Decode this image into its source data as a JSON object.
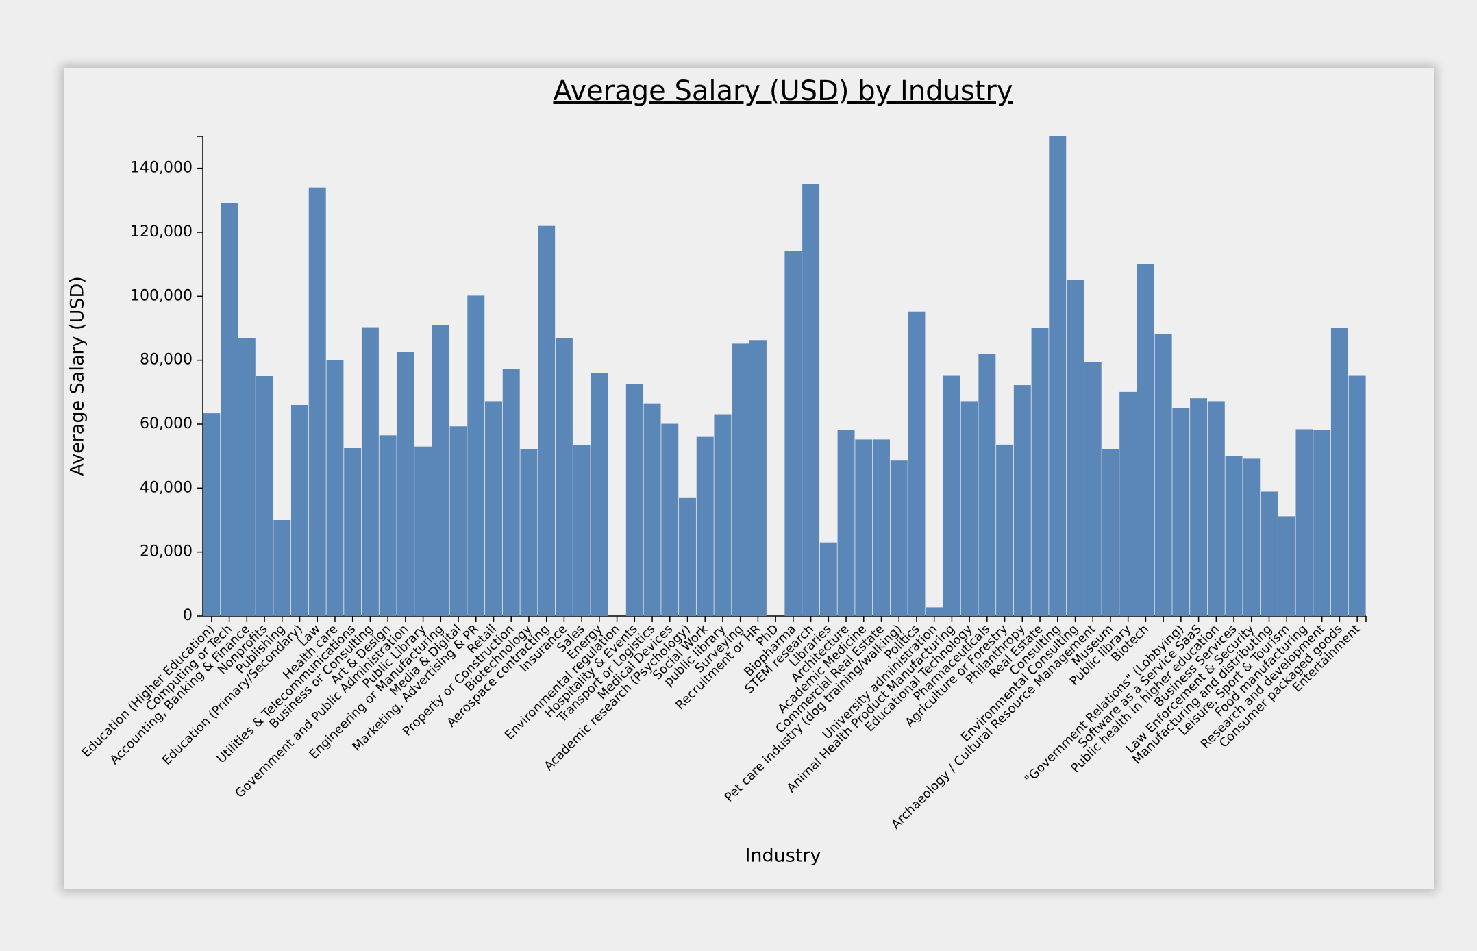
{
  "chart_data": {
    "type": "bar",
    "title": "Average Salary (USD) by Industry",
    "x_label": "Industry",
    "y_label": "Average Salary (USD)",
    "color": "#5b87b8",
    "categories": [
      "Education (Higher Education)",
      "Computing or Tech",
      "Accounting, Banking & Finance",
      "Nonprofits",
      "Publishing",
      "Education (Primary/Secondary)",
      "Law",
      "Health care",
      "Utilities & Telecommunications",
      "Business or Consulting",
      "Art & Design",
      "Government and Public Administration",
      "Public Library",
      "Engineering or Manufacturing",
      "Media & Digital",
      "Marketing, Advertising & PR",
      "Retail",
      "Property or Construction",
      "Biotechnology",
      "Aerospace contracting",
      "Insurance",
      "Sales",
      "Energy",
      "Environmental regulation",
      "Hospitality & Events",
      "Transport or Logistics",
      "Medical Devices",
      "Academic research (Psychology)",
      "Social Work",
      "public library",
      "Surveying",
      "Recruitment or HR",
      "PhD",
      "Biopharma",
      "STEM research",
      "Libraries",
      "Architecture",
      "Academic Medicine",
      "Commercial Real Estate",
      "Pet care industry (dog training/walking)",
      "Politics",
      "University administration",
      "Animal Health Product Manufacturing",
      "Educational Technology",
      "Pharmaceuticals",
      "Agriculture or Forestry",
      "Philanthropy",
      "Real Estate",
      "Consulting",
      "Environmental Consulting",
      "Archaeology / Cultural Resource Management",
      "Museum",
      "Public library",
      "Biotech",
      null,
      "\"Government Relations\" (Lobbying)",
      "Software as a Service SaaS",
      "Public health in higher education",
      "Business Services",
      "Law Enforcement & Security",
      "Manufacturing and distributing",
      "Leisure, Sport & Tourism",
      "Food manufacturing",
      "Research and development",
      "Consumer packaged goods",
      "Entertainment"
    ],
    "values": [
      63400,
      129000,
      87000,
      75000,
      30000,
      66000,
      134000,
      80000,
      52500,
      90300,
      56500,
      82500,
      53000,
      91000,
      59300,
      100200,
      67200,
      77300,
      52200,
      122000,
      87000,
      53500,
      76000,
      null,
      72500,
      66500,
      60100,
      36900,
      56000,
      63100,
      85200,
      86300,
      null,
      114000,
      135000,
      23000,
      58100,
      55200,
      55200,
      48600,
      95200,
      2700,
      75100,
      67200,
      82000,
      53600,
      72200,
      90200,
      150000,
      105200,
      79300,
      52200,
      70100,
      110000,
      88100,
      65100,
      68100,
      67200,
      50100,
      49200,
      38900,
      31200,
      58400,
      58100,
      90200,
      75100
    ],
    "ylim": [
      0,
      150000
    ],
    "yticks": [
      {
        "value": 0,
        "label": "0"
      },
      {
        "value": 20000,
        "label": "20,000"
      },
      {
        "value": 40000,
        "label": "40,000"
      },
      {
        "value": 60000,
        "label": "60,000"
      },
      {
        "value": 80000,
        "label": "80,000"
      },
      {
        "value": 100000,
        "label": "100,000"
      },
      {
        "value": 120000,
        "label": "120,000"
      },
      {
        "value": 140000,
        "label": "140,000"
      }
    ],
    "grid": false
  }
}
